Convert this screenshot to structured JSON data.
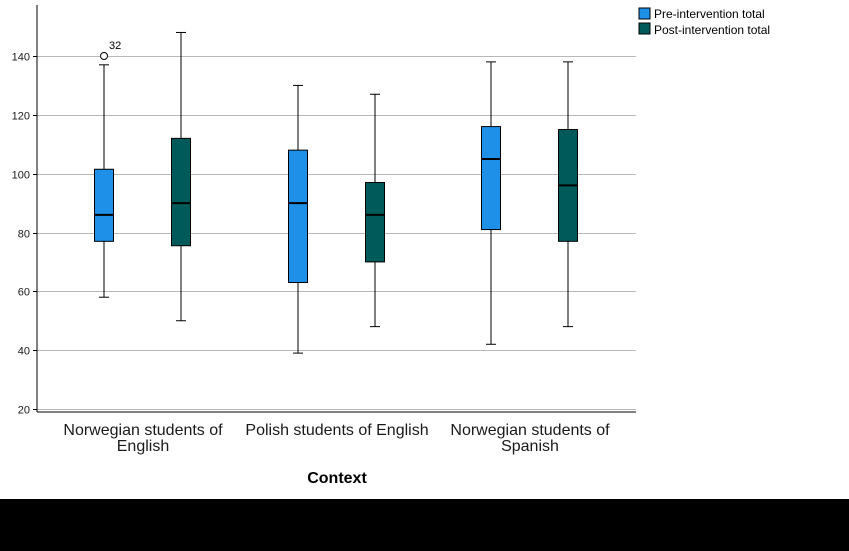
{
  "chart_data": {
    "type": "boxplot",
    "xlabel": "Context",
    "ylabel": "",
    "ylim": [
      18,
      155
    ],
    "yticks": [
      20,
      40,
      60,
      80,
      100,
      120,
      140
    ],
    "grid": true,
    "legend_position": "top-right",
    "categories": [
      [
        "Norwegian students of",
        "English"
      ],
      [
        "Polish students of English"
      ],
      [
        "Norwegian students of",
        "Spanish"
      ]
    ],
    "series": [
      {
        "name": "Pre-intervention total",
        "color": "#1e90e8",
        "boxes": [
          {
            "min": 58,
            "q1": 77,
            "median": 86,
            "q3": 101.5,
            "max": 137,
            "outliers": [
              {
                "value": 140,
                "label": "32"
              }
            ]
          },
          {
            "min": 39,
            "q1": 63,
            "median": 90,
            "q3": 108,
            "max": 130,
            "outliers": []
          },
          {
            "min": 42,
            "q1": 81,
            "median": 105,
            "q3": 116,
            "max": 138,
            "outliers": []
          }
        ]
      },
      {
        "name": "Post-intervention total",
        "color": "#005a5a",
        "boxes": [
          {
            "min": 50,
            "q1": 75.5,
            "median": 90,
            "q3": 112,
            "max": 148,
            "outliers": []
          },
          {
            "min": 48,
            "q1": 70,
            "median": 86,
            "q3": 97,
            "max": 127,
            "outliers": []
          },
          {
            "min": 48,
            "q1": 77,
            "median": 96,
            "q3": 115,
            "max": 138,
            "outliers": []
          }
        ]
      }
    ]
  }
}
